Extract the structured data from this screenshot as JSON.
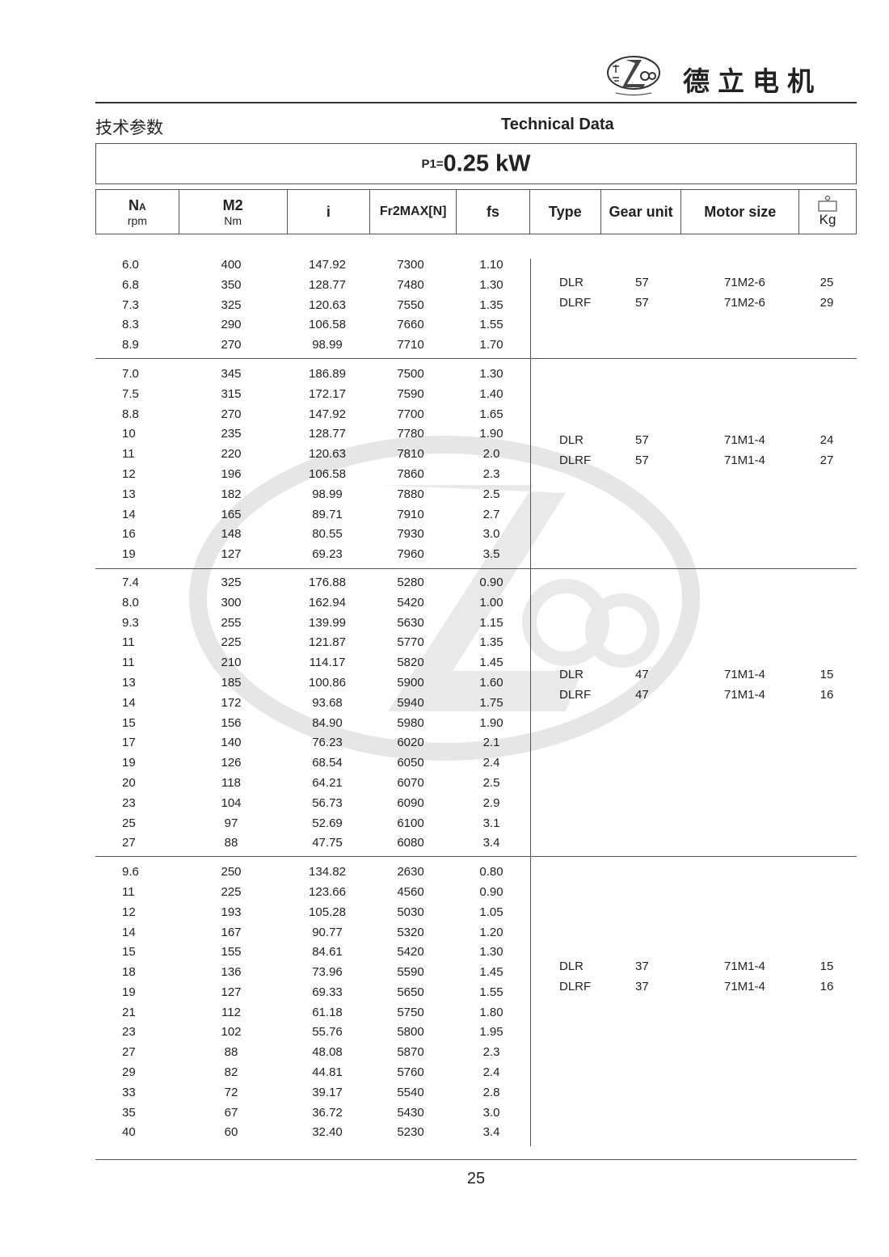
{
  "header": {
    "brand_cn": "德立电机",
    "logo_text": "De Li Gear Motor",
    "section_cn": "技术参数",
    "section_en": "Technical Data"
  },
  "power": {
    "label": "P1=",
    "value": "0.25 kW"
  },
  "columns": {
    "na": "NA",
    "na_sub": "A",
    "na_unit": "rpm",
    "m2": "M2",
    "m2_unit": "Nm",
    "i": "i",
    "fr": "Fr2MAX[N]",
    "fs": "fs",
    "type": "Type",
    "gear_unit": "Gear unit",
    "motor_size": "Motor size",
    "weight_unit": "Kg",
    "weight_icon": "weight-icon"
  },
  "groups": [
    {
      "rows": [
        [
          "6.0",
          "400",
          "147.92",
          "7300",
          "1.10"
        ],
        [
          "6.8",
          "350",
          "128.77",
          "7480",
          "1.30"
        ],
        [
          "7.3",
          "325",
          "120.63",
          "7550",
          "1.35"
        ],
        [
          "8.3",
          "290",
          "106.58",
          "7660",
          "1.55"
        ],
        [
          "8.9",
          "270",
          "98.99",
          "7710",
          "1.70"
        ]
      ],
      "specs": [
        [
          "DLR",
          "57",
          "71M2-6",
          "25"
        ],
        [
          "DLRF",
          "57",
          "71M2-6",
          "29"
        ]
      ]
    },
    {
      "rows": [
        [
          "7.0",
          "345",
          "186.89",
          "7500",
          "1.30"
        ],
        [
          "7.5",
          "315",
          "172.17",
          "7590",
          "1.40"
        ],
        [
          "8.8",
          "270",
          "147.92",
          "7700",
          "1.65"
        ],
        [
          "10",
          "235",
          "128.77",
          "7780",
          "1.90"
        ],
        [
          "11",
          "220",
          "120.63",
          "7810",
          "2.0"
        ],
        [
          "12",
          "196",
          "106.58",
          "7860",
          "2.3"
        ],
        [
          "13",
          "182",
          "98.99",
          "7880",
          "2.5"
        ],
        [
          "14",
          "165",
          "89.71",
          "7910",
          "2.7"
        ],
        [
          "16",
          "148",
          "80.55",
          "7930",
          "3.0"
        ],
        [
          "19",
          "127",
          "69.23",
          "7960",
          "3.5"
        ]
      ],
      "specs": [
        [
          "DLR",
          "57",
          "71M1-4",
          "24"
        ],
        [
          "DLRF",
          "57",
          "71M1-4",
          "27"
        ]
      ]
    },
    {
      "rows": [
        [
          "7.4",
          "325",
          "176.88",
          "5280",
          "0.90"
        ],
        [
          "8.0",
          "300",
          "162.94",
          "5420",
          "1.00"
        ],
        [
          "9.3",
          "255",
          "139.99",
          "5630",
          "1.15"
        ],
        [
          "11",
          "225",
          "121.87",
          "5770",
          "1.35"
        ],
        [
          "11",
          "210",
          "114.17",
          "5820",
          "1.45"
        ],
        [
          "13",
          "185",
          "100.86",
          "5900",
          "1.60"
        ],
        [
          "14",
          "172",
          "93.68",
          "5940",
          "1.75"
        ],
        [
          "15",
          "156",
          "84.90",
          "5980",
          "1.90"
        ],
        [
          "17",
          "140",
          "76.23",
          "6020",
          "2.1"
        ],
        [
          "19",
          "126",
          "68.54",
          "6050",
          "2.4"
        ],
        [
          "20",
          "118",
          "64.21",
          "6070",
          "2.5"
        ],
        [
          "23",
          "104",
          "56.73",
          "6090",
          "2.9"
        ],
        [
          "25",
          "97",
          "52.69",
          "6100",
          "3.1"
        ],
        [
          "27",
          "88",
          "47.75",
          "6080",
          "3.4"
        ]
      ],
      "specs": [
        [
          "DLR",
          "47",
          "71M1-4",
          "15"
        ],
        [
          "DLRF",
          "47",
          "71M1-4",
          "16"
        ]
      ]
    },
    {
      "rows": [
        [
          "9.6",
          "250",
          "134.82",
          "2630",
          "0.80"
        ],
        [
          "11",
          "225",
          "123.66",
          "4560",
          "0.90"
        ],
        [
          "12",
          "193",
          "105.28",
          "5030",
          "1.05"
        ],
        [
          "14",
          "167",
          "90.77",
          "5320",
          "1.20"
        ],
        [
          "15",
          "155",
          "84.61",
          "5420",
          "1.30"
        ],
        [
          "18",
          "136",
          "73.96",
          "5590",
          "1.45"
        ],
        [
          "19",
          "127",
          "69.33",
          "5650",
          "1.55"
        ],
        [
          "21",
          "112",
          "61.18",
          "5750",
          "1.80"
        ],
        [
          "23",
          "102",
          "55.76",
          "5800",
          "1.95"
        ],
        [
          "27",
          "88",
          "48.08",
          "5870",
          "2.3"
        ],
        [
          "29",
          "82",
          "44.81",
          "5760",
          "2.4"
        ],
        [
          "33",
          "72",
          "39.17",
          "5540",
          "2.8"
        ],
        [
          "35",
          "67",
          "36.72",
          "5430",
          "3.0"
        ],
        [
          "40",
          "60",
          "32.40",
          "5230",
          "3.4"
        ]
      ],
      "specs": [
        [
          "DLR",
          "37",
          "71M1-4",
          "15"
        ],
        [
          "DLRF",
          "37",
          "71M1-4",
          "16"
        ]
      ]
    }
  ],
  "footer": {
    "page_number": "25"
  },
  "colors": {
    "text": "#222222",
    "rule": "#555555",
    "watermark": "#e4e4e4"
  }
}
